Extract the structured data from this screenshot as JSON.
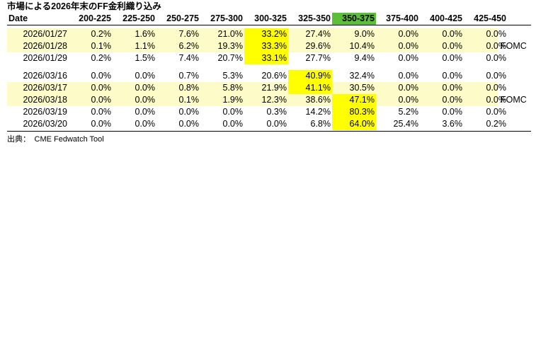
{
  "title": "市場による2026年末のFF金利織り込み",
  "source": "出典：　CME Fedwatch Tool",
  "note_label": "FOMC",
  "colors": {
    "highlight": "#ffff00",
    "column_highlight": "#5bbf3a",
    "fomc_band": "#fdfbc7"
  },
  "chart_data": {
    "type": "table",
    "title": "市場による2026年末のFF金利織り込み",
    "columns": [
      "Date",
      "200-225",
      "225-250",
      "250-275",
      "275-300",
      "300-325",
      "325-350",
      "350-375",
      "375-400",
      "400-425",
      "425-450"
    ],
    "highlighted_column": "350-375",
    "rows": [
      {
        "date": "2026/01/27",
        "values": [
          "0.2%",
          "1.6%",
          "7.6%",
          "21.0%",
          "33.2%",
          "27.4%",
          "9.0%",
          "0.0%",
          "0.0%",
          "0.0%"
        ],
        "highlight": [
          4
        ],
        "band": true,
        "note": ""
      },
      {
        "date": "2026/01/28",
        "values": [
          "0.1%",
          "1.1%",
          "6.2%",
          "19.3%",
          "33.3%",
          "29.6%",
          "10.4%",
          "0.0%",
          "0.0%",
          "0.0%"
        ],
        "highlight": [
          4
        ],
        "band": true,
        "note": "FOMC"
      },
      {
        "date": "2026/01/29",
        "values": [
          "0.2%",
          "1.5%",
          "7.4%",
          "20.7%",
          "33.1%",
          "27.7%",
          "9.4%",
          "0.0%",
          "0.0%",
          "0.0%"
        ],
        "highlight": [
          4
        ],
        "band": false,
        "note": ""
      },
      {
        "date": "2026/03/16",
        "values": [
          "0.0%",
          "0.0%",
          "0.7%",
          "5.3%",
          "20.6%",
          "40.9%",
          "32.4%",
          "0.0%",
          "0.0%",
          "0.0%"
        ],
        "highlight": [
          5
        ],
        "band": false,
        "note": ""
      },
      {
        "date": "2026/03/17",
        "values": [
          "0.0%",
          "0.0%",
          "0.8%",
          "5.8%",
          "21.9%",
          "41.1%",
          "30.5%",
          "0.0%",
          "0.0%",
          "0.0%"
        ],
        "highlight": [
          5
        ],
        "band": true,
        "note": ""
      },
      {
        "date": "2026/03/18",
        "values": [
          "0.0%",
          "0.0%",
          "0.1%",
          "1.9%",
          "12.3%",
          "38.6%",
          "47.1%",
          "0.0%",
          "0.0%",
          "0.0%"
        ],
        "highlight": [
          6
        ],
        "band": true,
        "note": "FOMC"
      },
      {
        "date": "2026/03/19",
        "values": [
          "0.0%",
          "0.0%",
          "0.0%",
          "0.0%",
          "0.3%",
          "14.2%",
          "80.3%",
          "5.2%",
          "0.0%",
          "0.0%"
        ],
        "highlight": [
          6
        ],
        "band": false,
        "note": ""
      },
      {
        "date": "2026/03/20",
        "values": [
          "0.0%",
          "0.0%",
          "0.0%",
          "0.0%",
          "0.0%",
          "6.8%",
          "64.0%",
          "25.4%",
          "3.6%",
          "0.2%"
        ],
        "highlight": [
          6
        ],
        "band": false,
        "note": ""
      }
    ]
  }
}
